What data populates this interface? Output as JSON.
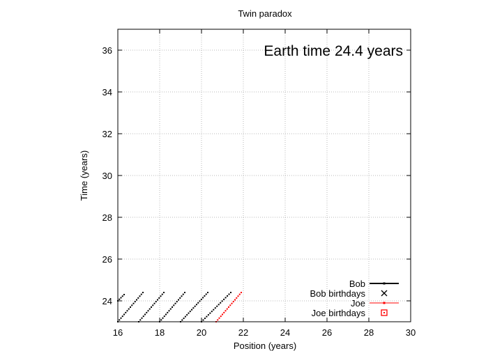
{
  "chart_data": {
    "type": "line",
    "title": "Twin paradox",
    "annotation": "Earth time 24.4 years",
    "xlabel": "Position (years)",
    "ylabel": "Time (years)",
    "xlim": [
      16,
      30
    ],
    "ylim": [
      23,
      37
    ],
    "xticks": [
      "16",
      "18",
      "20",
      "22",
      "24",
      "26",
      "28",
      "30"
    ],
    "yticks": [
      "24",
      "26",
      "28",
      "30",
      "32",
      "34",
      "36"
    ],
    "grid": true,
    "legend_position": "bottom-right",
    "series": [
      {
        "name": "Bob",
        "color": "#000000",
        "style": "dotted segments",
        "segments": [
          [
            [
              16.0,
              24.0
            ],
            [
              16.3,
              24.3
            ]
          ],
          [
            [
              16.0,
              23.0
            ],
            [
              17.2,
              24.4
            ]
          ],
          [
            [
              17.0,
              23.0
            ],
            [
              18.2,
              24.4
            ]
          ],
          [
            [
              18.0,
              23.0
            ],
            [
              19.2,
              24.4
            ]
          ],
          [
            [
              19.0,
              23.0
            ],
            [
              20.3,
              24.4
            ]
          ],
          [
            [
              20.0,
              23.0
            ],
            [
              21.4,
              24.4
            ]
          ]
        ]
      },
      {
        "name": "Bob birthdays",
        "color": "#000000",
        "marker": "x",
        "points": []
      },
      {
        "name": "Joe",
        "color": "#ff0000",
        "style": "dotted segment",
        "segments": [
          [
            [
              20.7,
              23.0
            ],
            [
              21.9,
              24.4
            ]
          ]
        ]
      },
      {
        "name": "Joe birthdays",
        "color": "#ff0000",
        "marker": "square",
        "points": []
      }
    ]
  }
}
